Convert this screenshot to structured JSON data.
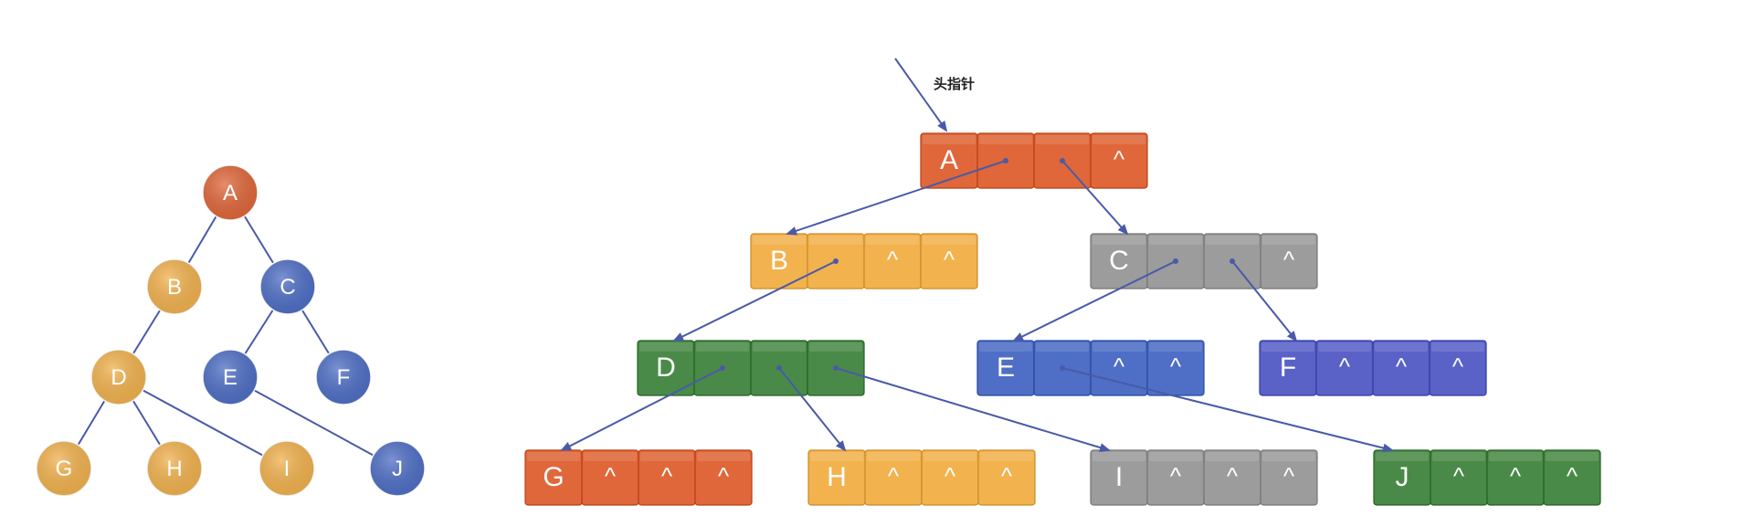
{
  "colors": {
    "orange": "#e0673a",
    "yellow": "#f2b24e",
    "blue": "#4f6fc6",
    "gray": "#9c9c9c",
    "green": "#4a8a48",
    "purple_blue": "#5a62c8",
    "edge": "#4a5aa8",
    "pointer": "#4a5aa8"
  },
  "tree": {
    "nodes": [
      {
        "id": "A",
        "label": "A",
        "color": "orange"
      },
      {
        "id": "B",
        "label": "B",
        "color": "yellow"
      },
      {
        "id": "C",
        "label": "C",
        "color": "blue"
      },
      {
        "id": "D",
        "label": "D",
        "color": "yellow"
      },
      {
        "id": "E",
        "label": "E",
        "color": "blue"
      },
      {
        "id": "F",
        "label": "F",
        "color": "blue"
      },
      {
        "id": "G",
        "label": "G",
        "color": "yellow"
      },
      {
        "id": "H",
        "label": "H",
        "color": "yellow"
      },
      {
        "id": "I",
        "label": "I",
        "color": "yellow"
      },
      {
        "id": "J",
        "label": "J",
        "color": "blue"
      }
    ],
    "edges": [
      [
        "A",
        "B"
      ],
      [
        "A",
        "C"
      ],
      [
        "B",
        "D"
      ],
      [
        "C",
        "E"
      ],
      [
        "C",
        "F"
      ],
      [
        "D",
        "G"
      ],
      [
        "D",
        "H"
      ],
      [
        "D",
        "I"
      ],
      [
        "E",
        "J"
      ]
    ]
  },
  "list": {
    "head_label": "头指针",
    "nodes": [
      {
        "id": "A",
        "cells": [
          "A",
          "",
          "",
          "^"
        ],
        "color": "orange"
      },
      {
        "id": "B",
        "cells": [
          "B",
          "",
          "^",
          "^"
        ],
        "color": "yellow"
      },
      {
        "id": "C",
        "cells": [
          "C",
          "",
          "",
          "^"
        ],
        "color": "gray"
      },
      {
        "id": "D",
        "cells": [
          "D",
          "",
          "",
          ""
        ],
        "color": "green"
      },
      {
        "id": "E",
        "cells": [
          "E",
          "",
          "^",
          "^"
        ],
        "color": "blue"
      },
      {
        "id": "F",
        "cells": [
          "F",
          "^",
          "^",
          "^"
        ],
        "color": "purple_blue"
      },
      {
        "id": "G",
        "cells": [
          "G",
          "^",
          "^",
          "^"
        ],
        "color": "orange"
      },
      {
        "id": "H",
        "cells": [
          "H",
          "^",
          "^",
          "^"
        ],
        "color": "yellow"
      },
      {
        "id": "I",
        "cells": [
          "I",
          "^",
          "^",
          "^"
        ],
        "color": "gray"
      },
      {
        "id": "J",
        "cells": [
          "J",
          "^",
          "^",
          "^"
        ],
        "color": "green"
      }
    ],
    "pointers": [
      {
        "from": "A",
        "cell": 1,
        "to": "B"
      },
      {
        "from": "A",
        "cell": 2,
        "to": "C"
      },
      {
        "from": "B",
        "cell": 1,
        "to": "D"
      },
      {
        "from": "C",
        "cell": 1,
        "to": "E"
      },
      {
        "from": "C",
        "cell": 2,
        "to": "F"
      },
      {
        "from": "D",
        "cell": 1,
        "to": "G"
      },
      {
        "from": "D",
        "cell": 2,
        "to": "H"
      },
      {
        "from": "D",
        "cell": 3,
        "to": "I"
      },
      {
        "from": "E",
        "cell": 1,
        "to": "J"
      }
    ]
  }
}
